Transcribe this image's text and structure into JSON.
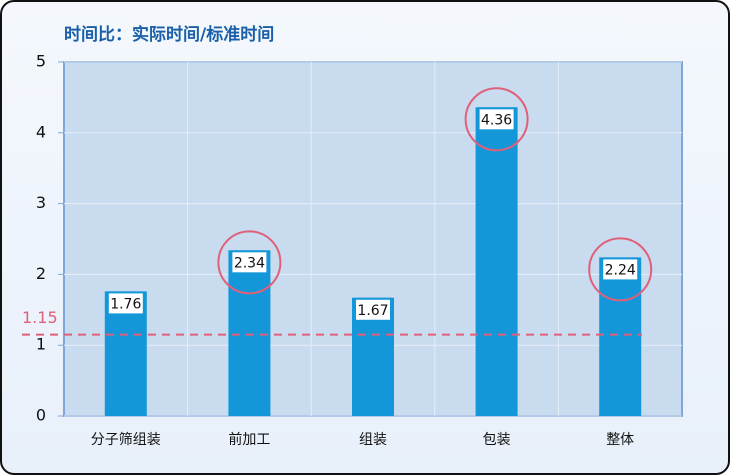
{
  "chart_data": {
    "type": "bar",
    "title": "时间比：实际时间/标准时间",
    "categories": [
      "分子筛组装",
      "前加工",
      "组装",
      "包装",
      "整体"
    ],
    "values": [
      1.76,
      2.34,
      1.67,
      4.36,
      2.24
    ],
    "color": "#1497d8",
    "ylim": [
      0,
      5
    ],
    "yticks": [
      0,
      1,
      2,
      3,
      4,
      5
    ],
    "grid": true,
    "reference_line": 1.15,
    "reference_color": "#e0607a",
    "highlighted": [
      false,
      true,
      false,
      true,
      true
    ],
    "highlight_color": "#e0607a"
  }
}
